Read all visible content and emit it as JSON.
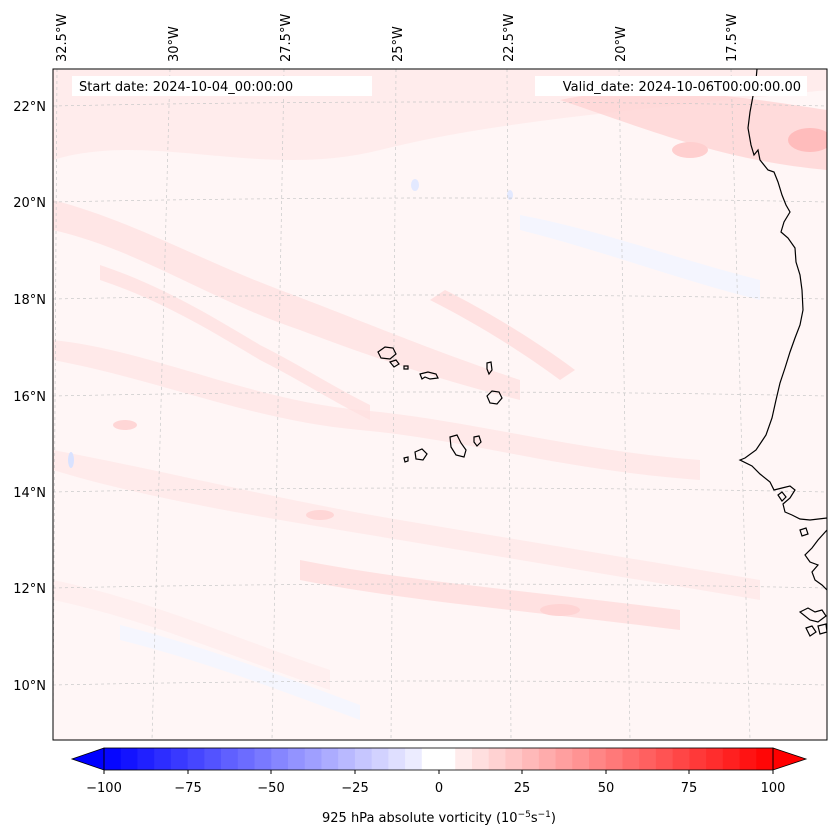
{
  "map": {
    "start_label": "Start date: 2024-10-04_00:00:00",
    "valid_label": "Valid_date: 2024-10-06T00:00:00.00",
    "lon_labels": [
      "32.5°W",
      "30°W",
      "27.5°W",
      "25°W",
      "22.5°W",
      "20°W",
      "17.5°W"
    ],
    "lat_labels": [
      "22°N",
      "20°N",
      "18°N",
      "16°N",
      "14°N",
      "12°N",
      "10°N"
    ],
    "field_colors": {
      "land_outline": "#000000",
      "positive": "#ff0000",
      "negative": "#0000ff",
      "neutral": "#ffffff",
      "grid": "#bbbbbb"
    }
  },
  "colorbar": {
    "min": -100,
    "max": 100,
    "step": 5,
    "ticks": [
      "−100",
      "−75",
      "−50",
      "−25",
      "0",
      "25",
      "50",
      "75",
      "100"
    ],
    "label_prefix": "925 hPa absolute vorticity (10",
    "label_exp1": "−5",
    "label_mid": "s",
    "label_exp2": "−1",
    "label_suffix": ")"
  }
}
